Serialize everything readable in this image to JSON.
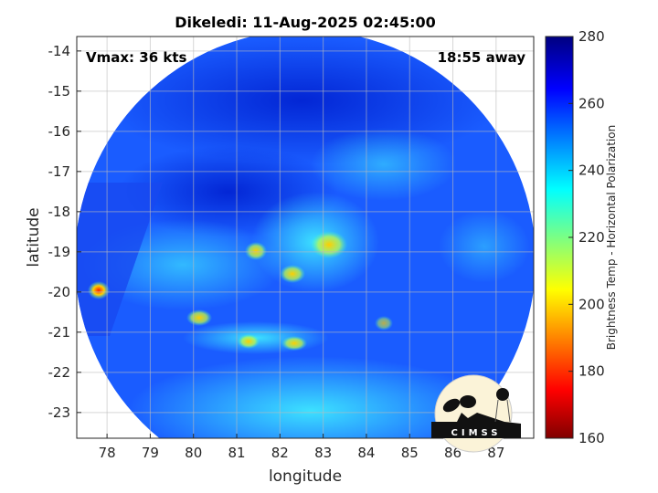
{
  "title": "Dikeledi: 11-Aug-2025 02:45:00",
  "annotations": {
    "vmax": "Vmax: 36 kts",
    "time_away": "18:55 away"
  },
  "x_axis": {
    "label": "longitude",
    "ticks": [
      78,
      79,
      80,
      81,
      82,
      83,
      84,
      85,
      86,
      87
    ],
    "range": [
      77.3,
      87.87
    ]
  },
  "y_axis": {
    "label": "latitude",
    "ticks": [
      -14,
      -15,
      -16,
      -17,
      -18,
      -19,
      -20,
      -21,
      -22,
      -23
    ],
    "range": [
      -23.64,
      -13.64
    ]
  },
  "colorbar": {
    "label": "Brightness Temp - Horizontal Polarization",
    "ticks": [
      160,
      180,
      200,
      220,
      240,
      260,
      280
    ],
    "range": [
      160,
      280
    ],
    "colormap": "jet"
  },
  "grid": true,
  "logo": {
    "text": "CIMSS"
  },
  "colors": {
    "background_field": "#1a5cff",
    "core": "#38e0ff",
    "warm_spots": "#ffd000"
  }
}
